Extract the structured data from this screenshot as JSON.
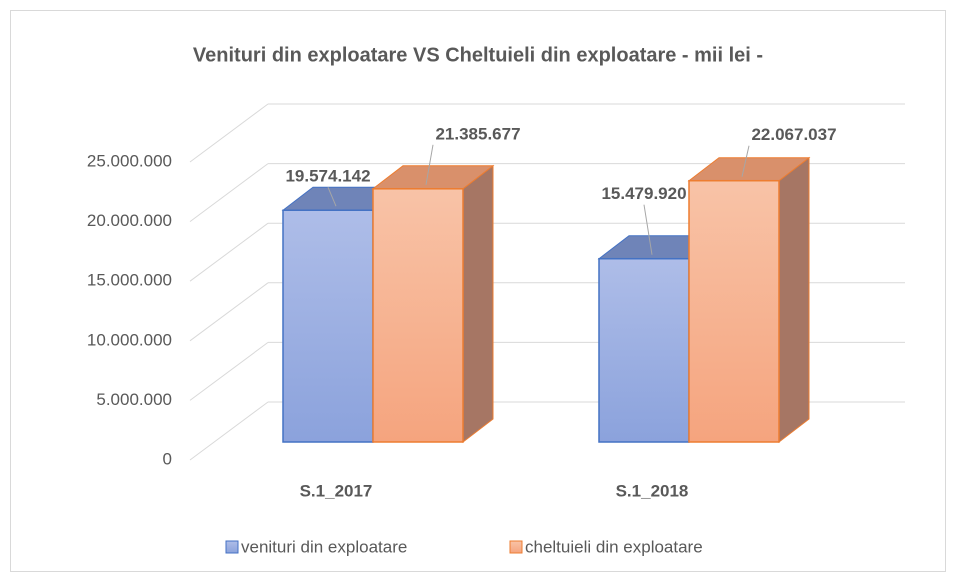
{
  "chart_data": {
    "type": "bar3d",
    "title": "Venituri din exploatare VS Cheltuieli din exploatare - mii lei -",
    "categories": [
      "S.1_2017",
      "S.1_2018"
    ],
    "series": [
      {
        "name": "venituri din exploatare",
        "color": "#4472c4",
        "values": [
          19574142,
          15479920
        ],
        "value_labels": [
          "19.574.142",
          "15.479.920"
        ]
      },
      {
        "name": "cheltuieli din exploatare",
        "color": "#ed7d31",
        "values": [
          21385677,
          22067037
        ],
        "value_labels": [
          "21.385.677",
          "22.067.037"
        ]
      }
    ],
    "ylim": [
      0,
      25000000
    ],
    "yticks": [
      0,
      {
        "value": 5000000,
        "label": "5.000.000"
      },
      {
        "value": 10000000,
        "label": "10.000.000"
      },
      {
        "value": 15000000,
        "label": "15.000.000"
      },
      {
        "value": 20000000,
        "label": "20.000.000"
      },
      {
        "value": 25000000,
        "label": "25.000.000"
      }
    ],
    "grid": true,
    "legend": "bottom"
  }
}
